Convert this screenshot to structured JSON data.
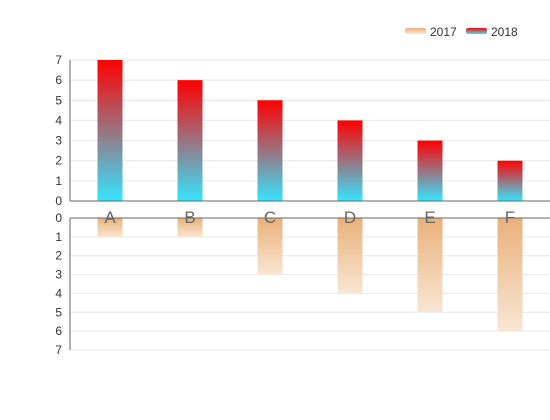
{
  "chart_data": {
    "type": "bar",
    "categories": [
      "A",
      "B",
      "C",
      "D",
      "E",
      "F"
    ],
    "series": [
      {
        "name": "2018",
        "values": [
          7,
          6,
          5,
          4,
          3,
          2
        ],
        "panel": "top",
        "gradient": [
          "#ff0000",
          "#35e5ff"
        ]
      },
      {
        "name": "2017",
        "values": [
          1,
          1,
          3,
          4,
          5,
          6
        ],
        "panel": "bottom",
        "gradient": [
          "#e9b17b",
          "#f8e6d4"
        ]
      }
    ],
    "ylim_top": [
      0,
      7
    ],
    "ylim_bottom": [
      0,
      7
    ],
    "y_ticks": [
      0,
      1,
      2,
      3,
      4,
      5,
      6,
      7
    ],
    "bottom_axis_inverted": true,
    "grid": true,
    "legend": {
      "position": "top-right",
      "entries": [
        "2017",
        "2018"
      ]
    },
    "colors": {
      "grid": "#e6e6e6",
      "axis": "#666666",
      "tick_text": "#333333",
      "category_text": "#666666"
    }
  }
}
